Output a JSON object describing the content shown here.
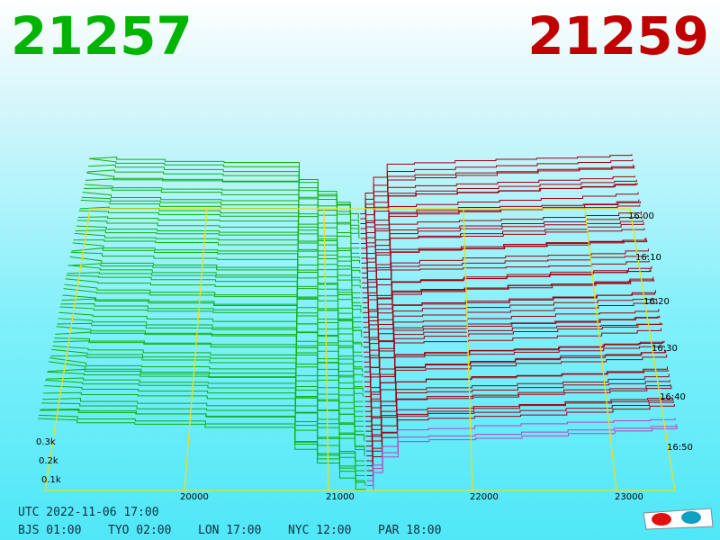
{
  "header": {
    "bid": "21257",
    "ask": "21259"
  },
  "axes": {
    "price_labels": [
      "20000",
      "21000",
      "22000",
      "23000"
    ],
    "depth_labels": [
      "0.3k",
      "0.2k",
      "0.1k"
    ],
    "time_labels": [
      "16:00",
      "16:10",
      "16:20",
      "16:30",
      "16:40",
      "16:50"
    ]
  },
  "footer": {
    "utc": "UTC 2022-11-06 17:00",
    "zones": [
      "BJS 01:00",
      "TYO 02:00",
      "LON 17:00",
      "NYC 12:00",
      "PAR 18:00"
    ]
  }
}
